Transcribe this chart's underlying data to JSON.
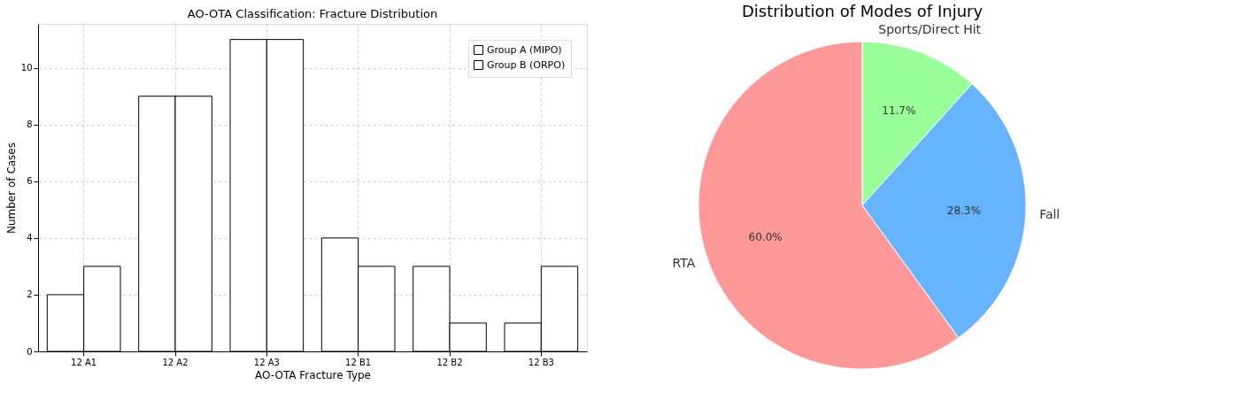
{
  "chart_data": [
    {
      "type": "bar",
      "title": "AO-OTA Classification: Fracture Distribution",
      "xlabel": "AO-OTA Fracture Type",
      "ylabel": "Number of Cases",
      "categories": [
        "12 A1",
        "12 A2",
        "12 A3",
        "12 B1",
        "12 B2",
        "12 B3"
      ],
      "series": [
        {
          "name": "Group A (MIPO)",
          "color": "#ffffff",
          "values": [
            2,
            9,
            11,
            4,
            3,
            1
          ]
        },
        {
          "name": "Group B (ORPO)",
          "color": "#ffffff",
          "values": [
            3,
            9,
            11,
            3,
            1,
            3
          ]
        }
      ],
      "ylim": [
        0,
        11.55
      ],
      "yticks": [
        0,
        2,
        4,
        6,
        8,
        10
      ],
      "grid": true,
      "legend": "top right"
    },
    {
      "type": "pie",
      "title": "Distribution of Modes of Injury",
      "categories": [
        "Sports/Direct Hit",
        "Fall",
        "RTA"
      ],
      "values": [
        11.7,
        28.3,
        60.0
      ],
      "colors": [
        "#99ff99",
        "#66b3ff",
        "#ff9999"
      ],
      "value_labels": [
        "11.7%",
        "28.3%",
        "60.0%"
      ]
    }
  ]
}
